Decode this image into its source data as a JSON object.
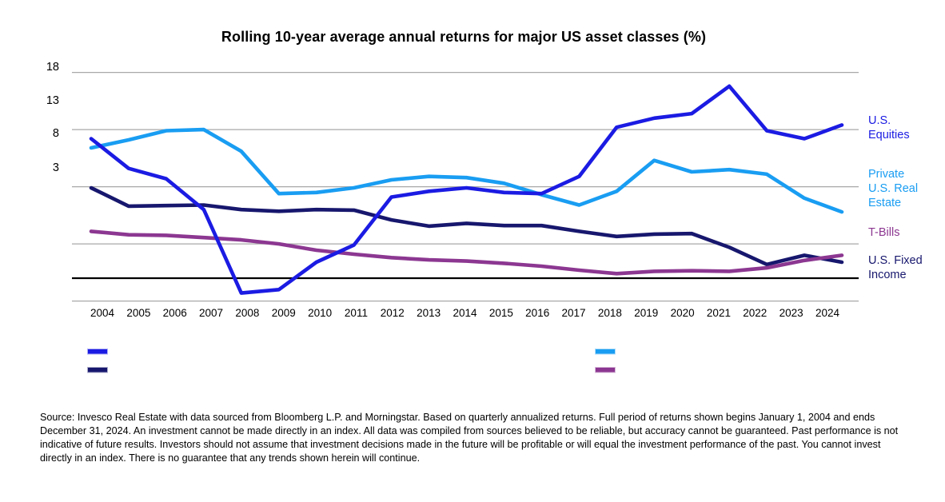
{
  "title": "Rolling 10-year average annual returns for major US asset classes (%)",
  "source_text": "Source: Invesco Real Estate with data sourced from Bloomberg L.P. and Morningstar. Based on quarterly annualized returns. Full period of returns shown begins January 1, 2004 and ends December 31, 2024. An investment cannot be made directly in an index. All data was compiled from sources believed to be reliable, but accuracy cannot be guaranteed. Past performance is not indicative of future results. Investors should not assume that investment decisions made in the future will be profitable or will equal the investment performance of the past. You cannot invest directly in an index. There is no guarantee that any trends shown herein will continue.",
  "colors": {
    "gridline": "#A8A8A8",
    "zero_line": "#000000",
    "axis_text": "#000000"
  },
  "chart_data": {
    "type": "line",
    "title": "Rolling 10-year average annual returns for major US asset classes (%)",
    "unit": "%",
    "x": [
      2004,
      2005,
      2006,
      2007,
      2008,
      2009,
      2010,
      2011,
      2012,
      2013,
      2014,
      2015,
      2016,
      2017,
      2018,
      2019,
      2020,
      2021,
      2022,
      2023,
      2024
    ],
    "x_tick_labels": [
      "2004",
      "2005",
      "2006",
      "2007",
      "2008",
      "2009",
      "2010",
      "2011",
      "2012",
      "2013",
      "2014",
      "2015",
      "2016",
      "2017",
      "2018",
      "2019",
      "2020",
      "2021",
      "2022",
      "2023",
      "2024"
    ],
    "y_tick_labels": [
      "18",
      "13",
      "8",
      "3"
    ],
    "y_gridline_values": [
      18,
      13,
      8,
      3,
      -2
    ],
    "zero_line": true,
    "ylim": [
      -2.5,
      18.5
    ],
    "grid": true,
    "legend_position": "right-side color labels plus bottom swatches",
    "series": [
      {
        "id": "us-fixed-income",
        "name": "U.S. Fixed Income",
        "label_lines": [
          "U.S. Fixed",
          "Income"
        ],
        "color": "#17176E",
        "values": [
          7.9,
          6.3,
          6.35,
          6.4,
          6.0,
          5.85,
          6.0,
          5.95,
          5.1,
          4.55,
          4.8,
          4.6,
          4.6,
          4.1,
          3.65,
          3.85,
          3.9,
          2.7,
          1.2,
          2.0,
          1.4
        ]
      },
      {
        "id": "t-bills",
        "name": "T-Bills",
        "label_lines": [
          "T-Bills"
        ],
        "color": "#8C3791",
        "values": [
          4.1,
          3.8,
          3.75,
          3.55,
          3.35,
          3.0,
          2.45,
          2.1,
          1.8,
          1.6,
          1.5,
          1.3,
          1.05,
          0.7,
          0.4,
          0.6,
          0.65,
          0.6,
          0.9,
          1.55,
          2.0
        ]
      },
      {
        "id": "private-us-real-estate",
        "name": "Private U.S. Real Estate",
        "label_lines": [
          "Private",
          "U.S. Real",
          "Estate"
        ],
        "color": "#199DF2",
        "values": [
          11.4,
          12.1,
          12.9,
          13.0,
          11.1,
          7.4,
          7.5,
          7.9,
          8.6,
          8.9,
          8.8,
          8.3,
          7.3,
          6.4,
          7.6,
          10.3,
          9.3,
          9.5,
          9.1,
          7.0,
          5.8
        ]
      },
      {
        "id": "us-equities",
        "name": "U.S. Equities",
        "label_lines": [
          "U.S.",
          "Equities"
        ],
        "color": "#1B1BE3",
        "values": [
          12.2,
          9.6,
          8.7,
          6.0,
          -1.3,
          -1.0,
          1.4,
          2.9,
          7.1,
          7.6,
          7.9,
          7.5,
          7.4,
          8.9,
          13.2,
          14.0,
          14.4,
          16.8,
          12.9,
          12.2,
          13.4
        ]
      }
    ]
  }
}
